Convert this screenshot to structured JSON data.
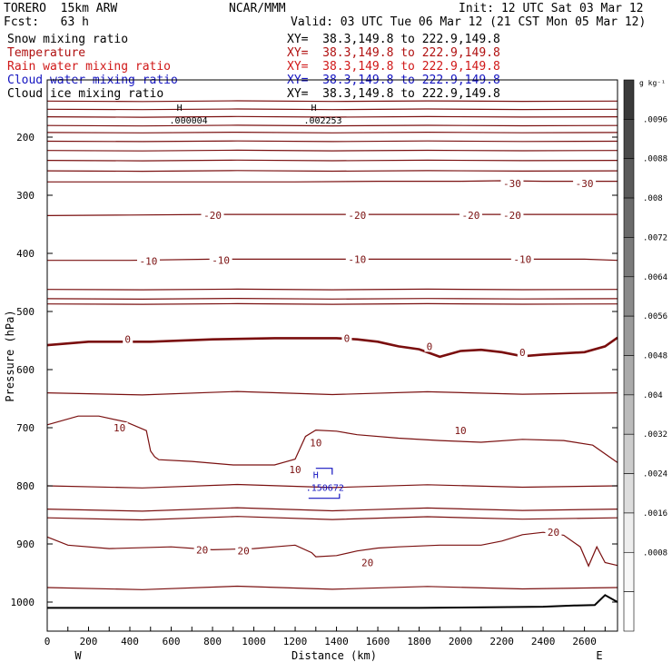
{
  "header": {
    "model": "TORERO  15km ARW",
    "org": "NCAR/MMM",
    "init": "Init: 12 UTC Sat 03 Mar 12",
    "fcst": "Fcst:   63 h",
    "valid": "Valid: 03 UTC Tue 06 Mar 12 (21 CST Mon 05 Mar 12)"
  },
  "fields": [
    {
      "label": "Snow mixing ratio",
      "xy": "XY=  38.3,149.8 to 222.9,149.8",
      "label_color": "#000000",
      "xy_color": "#000000"
    },
    {
      "label": "Temperature",
      "xy": "XY=  38.3,149.8 to 222.9,149.8",
      "label_color": "#b01010",
      "xy_color": "#b01010"
    },
    {
      "label": "Rain water mixing ratio",
      "xy": "XY=  38.3,149.8 to 222.9,149.8",
      "label_color": "#d01818",
      "xy_color": "#d01818"
    },
    {
      "label": "Cloud water mixing ratio",
      "xy": "XY=  38.3,149.8 to 222.9,149.8",
      "label_color": "#1414c0",
      "xy_color": "#1414c0"
    },
    {
      "label": "Cloud ice mixing ratio",
      "xy": "XY=  38.3,149.8 to 222.9,149.8",
      "label_color": "#000000",
      "xy_color": "#000000"
    }
  ],
  "chart_data": {
    "type": "line",
    "xlabel": "Distance (km)",
    "ylabel": "Pressure (hPa)",
    "xlim": [
      0,
      2760
    ],
    "ylim": [
      1045,
      125
    ],
    "x_ticks": [
      0,
      100,
      200,
      300,
      400,
      500,
      600,
      700,
      800,
      900,
      1000,
      1100,
      1200,
      1300,
      1400,
      1500,
      1600,
      1700,
      1800,
      1900,
      2000,
      2100,
      2200,
      2300,
      2400,
      2500,
      2600,
      2700
    ],
    "x_tick_labels": [
      "0",
      "200",
      "400",
      "600",
      "800",
      "1000",
      "1200",
      "1400",
      "1600",
      "1800",
      "2000",
      "2200",
      "2400",
      "2600"
    ],
    "x_tick_label_values": [
      0,
      200,
      400,
      600,
      800,
      1000,
      1200,
      1400,
      1600,
      1800,
      2000,
      2200,
      2400,
      2600
    ],
    "y_ticks": [
      200,
      300,
      400,
      500,
      600,
      700,
      800,
      900,
      1000
    ],
    "x_end_labels": {
      "left": "W",
      "right": "E"
    },
    "temperature_isotherms": [
      {
        "level": 10,
        "x": [
          0,
          150,
          250,
          380,
          480,
          500,
          520,
          540,
          700,
          900,
          1100,
          1200,
          1250,
          1300,
          1400,
          1500,
          1700,
          1900,
          2100,
          2300,
          2500,
          2640,
          2760
        ],
        "p": [
          695,
          680,
          680,
          690,
          705,
          740,
          750,
          755,
          758,
          764,
          764,
          754,
          715,
          704,
          706,
          712,
          718,
          722,
          725,
          720,
          722,
          730,
          760
        ]
      },
      {
        "level": 0,
        "x": [
          0,
          200,
          500,
          800,
          1100,
          1400,
          1500,
          1600,
          1700,
          1800,
          1900,
          2000,
          2100,
          2200,
          2300,
          2400,
          2500,
          2600,
          2700,
          2760
        ],
        "p": [
          558,
          552,
          552,
          548,
          546,
          546,
          548,
          552,
          560,
          565,
          578,
          568,
          566,
          570,
          577,
          574,
          572,
          570,
          560,
          545
        ]
      },
      {
        "level": -10,
        "x": [
          0,
          400,
          800,
          1200,
          1600,
          2000,
          2400,
          2600,
          2760
        ],
        "p": [
          412,
          412,
          410,
          410,
          410,
          410,
          410,
          410,
          412
        ]
      },
      {
        "level": -20,
        "x": [
          0,
          400,
          800,
          1200,
          1600,
          1900,
          2000,
          2200,
          2400,
          2760
        ],
        "p": [
          335,
          334,
          333,
          333,
          333,
          333,
          333,
          333,
          333,
          333
        ]
      },
      {
        "level": -30,
        "x": [
          0,
          400,
          800,
          1200,
          1600,
          1900,
          2000,
          2200,
          2400,
          2760
        ],
        "p": [
          277,
          277,
          277,
          277,
          276,
          276,
          276,
          275,
          276,
          276
        ]
      },
      {
        "level": 20,
        "x": [
          0,
          100,
          300,
          600,
          800,
          1000,
          1100,
          1200,
          1280,
          1300,
          1400,
          1500,
          1600,
          1700,
          1900,
          2100,
          2200,
          2300,
          2400,
          2500,
          2580,
          2620,
          2660,
          2700,
          2760
        ],
        "p": [
          888,
          902,
          908,
          905,
          910,
          908,
          905,
          902,
          915,
          922,
          920,
          912,
          907,
          905,
          902,
          902,
          895,
          884,
          880,
          885,
          905,
          938,
          905,
          932,
          937
        ]
      }
    ],
    "isotherm_labels": [
      {
        "text": "10",
        "x": 350,
        "p": 700
      },
      {
        "text": "10",
        "x": 1300,
        "p": 726
      },
      {
        "text": "10",
        "x": 1200,
        "p": 772
      },
      {
        "text": "10",
        "x": 2000,
        "p": 705
      },
      {
        "text": "0",
        "x": 390,
        "p": 548
      },
      {
        "text": "0",
        "x": 1450,
        "p": 546
      },
      {
        "text": "0",
        "x": 1850,
        "p": 560
      },
      {
        "text": "0",
        "x": 2300,
        "p": 570
      },
      {
        "text": "-10",
        "x": 490,
        "p": 413
      },
      {
        "text": "-10",
        "x": 840,
        "p": 412
      },
      {
        "text": "-10",
        "x": 1500,
        "p": 410
      },
      {
        "text": "-10",
        "x": 2300,
        "p": 410
      },
      {
        "text": "-20",
        "x": 800,
        "p": 334
      },
      {
        "text": "-20",
        "x": 1500,
        "p": 334
      },
      {
        "text": "-20",
        "x": 2050,
        "p": 334
      },
      {
        "text": "-20",
        "x": 2250,
        "p": 334
      },
      {
        "text": "-30",
        "x": 2250,
        "p": 280
      },
      {
        "text": "-30",
        "x": 2600,
        "p": 280
      },
      {
        "text": "20",
        "x": 750,
        "p": 910
      },
      {
        "text": "20",
        "x": 950,
        "p": 912
      },
      {
        "text": "20",
        "x": 1550,
        "p": 932
      },
      {
        "text": "20",
        "x": 2450,
        "p": 880
      }
    ],
    "other_isotherms_p": [
      138,
      152,
      165,
      180,
      192,
      207,
      223,
      240,
      258,
      462,
      478,
      487,
      640,
      800,
      840,
      855,
      975
    ],
    "ground_line": {
      "x": [
        0,
        600,
        1200,
        1800,
        2400,
        2550,
        2650,
        2700,
        2760
      ],
      "p": [
        1010,
        1010,
        1010,
        1010,
        1008,
        1006,
        1005,
        988,
        1000
      ]
    },
    "maxima": [
      {
        "symbol": "H",
        "value": ".000004",
        "x": 640,
        "p": 180,
        "color": "#000000"
      },
      {
        "symbol": "H",
        "value": ".002253",
        "x": 1290,
        "p": 180,
        "color": "#000000"
      },
      {
        "symbol": "H",
        "value": ".150672",
        "x": 1300,
        "p": 812,
        "color": "#1414c0"
      }
    ],
    "colorbar": {
      "unit": "g kg⁻¹",
      "labels": [
        ".0096",
        ".0088",
        ".008",
        ".0072",
        ".0064",
        ".0056",
        ".0048",
        ".004",
        ".0032",
        ".0024",
        ".0016",
        ".0008"
      ],
      "colors": [
        "#3a3a3a",
        "#4a4a4a",
        "#5a5a5a",
        "#6a6a6a",
        "#7a7a7a",
        "#8a8a8a",
        "#9a9a9a",
        "#aaaaaa",
        "#bbbbbb",
        "#cccccc",
        "#dddddd",
        "#eeeeee",
        "#f7f7f7",
        "#ffffff"
      ]
    },
    "colors": {
      "isotherm": "#7a1010",
      "zero_isotherm": "#7a0e0e",
      "cloud_water": "#1414c0",
      "ground": "#000000"
    }
  }
}
